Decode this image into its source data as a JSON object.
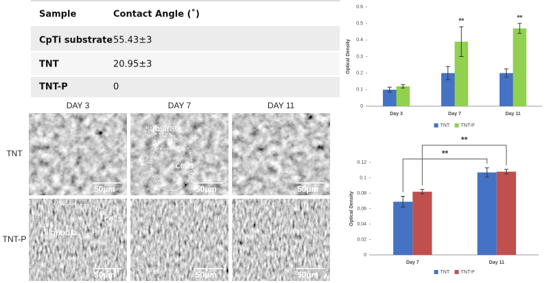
{
  "table": {
    "header": [
      "Sample",
      "Contact Angle (˚)"
    ],
    "rows": [
      [
        "CpTi substrate",
        "55.43±3"
      ],
      [
        "TNT",
        "20.95±3"
      ],
      [
        "TNT-P",
        "0"
      ]
    ]
  },
  "sem": {
    "columns": [
      "DAY 3",
      "DAY 7",
      "DAY 11"
    ],
    "rows": [
      "TNT",
      "TNT-P"
    ],
    "scale_bar": "50µm",
    "labels": {
      "substrate": "substrate",
      "cells_tnt": "cells",
      "filopodia": "filopodia",
      "cells_tntp": "cells"
    }
  },
  "chart_data": [
    {
      "type": "bar",
      "y_label": "Optical Density",
      "categories": [
        "Day 3",
        "Day 7",
        "Day 11"
      ],
      "series": [
        {
          "name": "TNT",
          "color": "#4472c4",
          "values": [
            0.1,
            0.2,
            0.2
          ],
          "errors": [
            0.015,
            0.04,
            0.025
          ]
        },
        {
          "name": "TNT-P",
          "color": "#92d050",
          "values": [
            0.12,
            0.39,
            0.47
          ],
          "errors": [
            0.01,
            0.09,
            0.03
          ]
        }
      ],
      "ylim": [
        0,
        0.6
      ],
      "yticks": [
        0,
        0.1,
        0.2,
        0.3,
        0.4,
        0.5,
        0.6
      ],
      "legend": "bottom",
      "annotations": [
        {
          "text": "**",
          "category": "Day 7",
          "series": "TNT-P"
        },
        {
          "text": "**",
          "category": "Day 11",
          "series": "TNT-P"
        }
      ]
    },
    {
      "type": "bar",
      "y_label": "Optical Density",
      "categories": [
        "Day 7",
        "Day 11"
      ],
      "series": [
        {
          "name": "TNT",
          "color": "#4472c4",
          "values": [
            0.069,
            0.107
          ],
          "errors": [
            0.007,
            0.006
          ]
        },
        {
          "name": "TNT-P",
          "color": "#c0504d",
          "values": [
            0.082,
            0.108
          ],
          "errors": [
            0.003,
            0.003
          ]
        }
      ],
      "ylim": [
        0,
        0.12
      ],
      "yticks": [
        0,
        0.02,
        0.04,
        0.06,
        0.08,
        0.1,
        0.12
      ],
      "legend": "bottom",
      "brackets": [
        {
          "text": "**",
          "series": "TNT-P"
        },
        {
          "text": "**",
          "series": "TNT"
        }
      ]
    }
  ]
}
